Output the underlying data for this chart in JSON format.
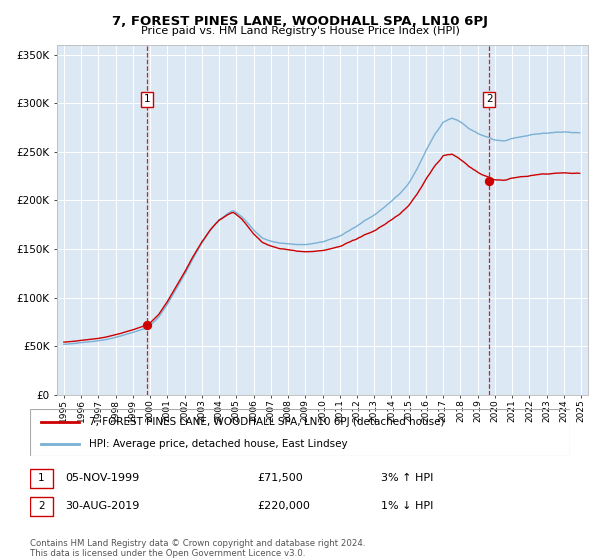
{
  "title": "7, FOREST PINES LANE, WOODHALL SPA, LN10 6PJ",
  "subtitle": "Price paid vs. HM Land Registry's House Price Index (HPI)",
  "legend_line1": "7, FOREST PINES LANE, WOODHALL SPA, LN10 6PJ (detached house)",
  "legend_line2": "HPI: Average price, detached house, East Lindsey",
  "sale1_date": "05-NOV-1999",
  "sale1_price": 71500,
  "sale1_label": "3% ↑ HPI",
  "sale2_date": "30-AUG-2019",
  "sale2_price": 220000,
  "sale2_label": "1% ↓ HPI",
  "footnote": "Contains HM Land Registry data © Crown copyright and database right 2024.\nThis data is licensed under the Open Government Licence v3.0.",
  "bg_color": "#dce9f5",
  "ylim": [
    0,
    360000
  ],
  "yticks": [
    0,
    50000,
    100000,
    150000,
    200000,
    250000,
    300000,
    350000
  ],
  "line_color_red": "#cc0000",
  "line_color_blue": "#7ab0d4",
  "dashed_color": "#cc0000",
  "sale1_year": 1999.84,
  "sale2_year": 2019.67,
  "hpi_base_points": [
    [
      0.0,
      52000
    ],
    [
      0.5,
      52500
    ],
    [
      1.0,
      53500
    ],
    [
      1.5,
      54500
    ],
    [
      2.0,
      55500
    ],
    [
      2.5,
      57000
    ],
    [
      3.0,
      59000
    ],
    [
      3.5,
      61500
    ],
    [
      4.0,
      64000
    ],
    [
      4.5,
      67000
    ],
    [
      4.84,
      68500
    ],
    [
      5.0,
      71000
    ],
    [
      5.5,
      80000
    ],
    [
      6.0,
      93000
    ],
    [
      6.5,
      108000
    ],
    [
      7.0,
      123000
    ],
    [
      7.5,
      140000
    ],
    [
      8.0,
      155000
    ],
    [
      8.5,
      168000
    ],
    [
      9.0,
      178000
    ],
    [
      9.5,
      185000
    ],
    [
      9.8,
      188000
    ],
    [
      10.0,
      186000
    ],
    [
      10.3,
      182000
    ],
    [
      10.5,
      178000
    ],
    [
      11.0,
      168000
    ],
    [
      11.5,
      160000
    ],
    [
      12.0,
      157000
    ],
    [
      12.5,
      155000
    ],
    [
      13.0,
      154000
    ],
    [
      13.5,
      153000
    ],
    [
      14.0,
      153000
    ],
    [
      14.5,
      154000
    ],
    [
      15.0,
      156000
    ],
    [
      15.5,
      159000
    ],
    [
      16.0,
      162000
    ],
    [
      16.5,
      167000
    ],
    [
      17.0,
      172000
    ],
    [
      17.5,
      178000
    ],
    [
      18.0,
      183000
    ],
    [
      18.5,
      190000
    ],
    [
      19.0,
      197000
    ],
    [
      19.5,
      205000
    ],
    [
      20.0,
      215000
    ],
    [
      20.5,
      230000
    ],
    [
      21.0,
      248000
    ],
    [
      21.5,
      265000
    ],
    [
      22.0,
      278000
    ],
    [
      22.5,
      282000
    ],
    [
      23.0,
      278000
    ],
    [
      23.5,
      272000
    ],
    [
      24.0,
      268000
    ],
    [
      24.5,
      265000
    ],
    [
      25.0,
      262000
    ],
    [
      25.5,
      261000
    ],
    [
      26.0,
      263000
    ],
    [
      26.5,
      265000
    ],
    [
      27.0,
      267000
    ],
    [
      27.5,
      268000
    ],
    [
      28.0,
      269000
    ],
    [
      29.0,
      270000
    ],
    [
      30.0,
      270000
    ]
  ],
  "noise_seed": 17,
  "noise_scale_hpi": 1800,
  "noise_scale_prop": 2200
}
